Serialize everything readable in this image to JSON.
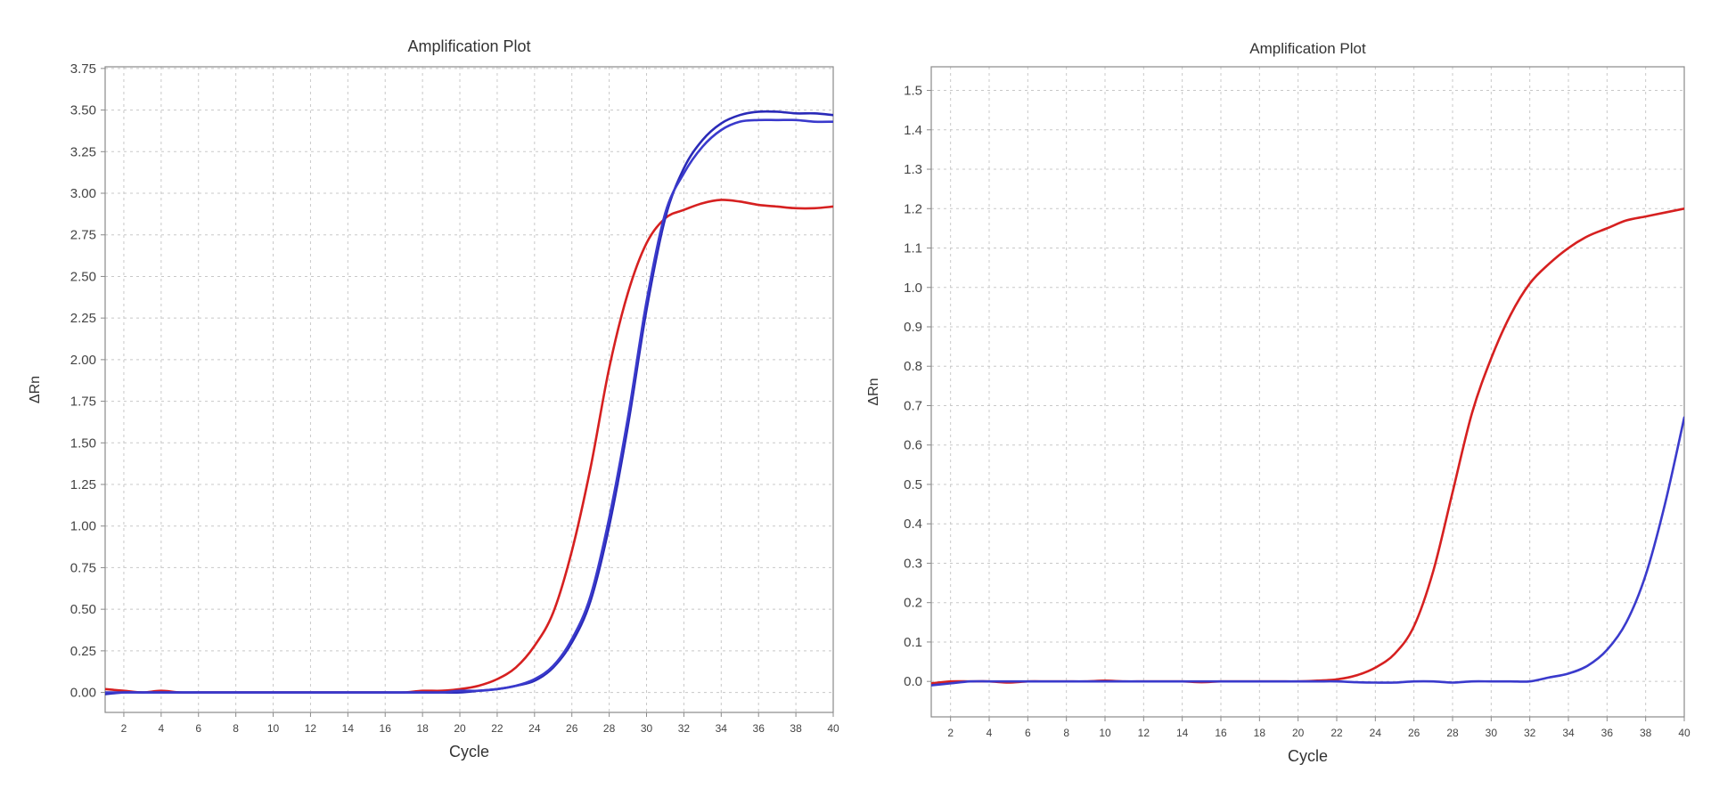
{
  "chart_data": [
    {
      "type": "line",
      "title": "Amplification Plot",
      "xlabel": "Cycle",
      "ylabel": "ΔRn",
      "xlim": [
        1,
        40
      ],
      "ylim": [
        -0.12,
        3.76
      ],
      "xticks": [
        2,
        4,
        6,
        8,
        10,
        12,
        14,
        16,
        18,
        20,
        22,
        24,
        26,
        28,
        30,
        32,
        34,
        36,
        38,
        40
      ],
      "yticks": [
        0.0,
        0.25,
        0.5,
        0.75,
        1.0,
        1.25,
        1.5,
        1.75,
        2.0,
        2.25,
        2.5,
        2.75,
        3.0,
        3.25,
        3.5,
        3.75
      ],
      "ytick_labels": [
        "0.00",
        "0.25",
        "0.50",
        "0.75",
        "1.00",
        "1.25",
        "1.50",
        "1.75",
        "2.00",
        "2.25",
        "2.50",
        "2.75",
        "3.00",
        "3.25",
        "3.50",
        "3.75"
      ],
      "grid": true,
      "x": [
        1,
        2,
        3,
        4,
        5,
        6,
        7,
        8,
        9,
        10,
        11,
        12,
        13,
        14,
        15,
        16,
        17,
        18,
        19,
        20,
        21,
        22,
        23,
        24,
        25,
        26,
        27,
        28,
        29,
        30,
        31,
        32,
        33,
        34,
        35,
        36,
        37,
        38,
        39,
        40
      ],
      "series": [
        {
          "color": "#d62020",
          "values": [
            0.02,
            0.01,
            0.0,
            0.01,
            0.0,
            0.0,
            0.0,
            0.0,
            0.0,
            0.0,
            0.0,
            0.0,
            0.0,
            0.0,
            0.0,
            0.0,
            0.0,
            0.01,
            0.01,
            0.02,
            0.04,
            0.08,
            0.15,
            0.28,
            0.48,
            0.85,
            1.35,
            1.95,
            2.4,
            2.7,
            2.85,
            2.9,
            2.94,
            2.96,
            2.95,
            2.93,
            2.92,
            2.91,
            2.91,
            2.92
          ]
        },
        {
          "color": "#2a2ab8",
          "values": [
            -0.01,
            0.0,
            0.0,
            0.0,
            0.0,
            0.0,
            0.0,
            0.0,
            0.0,
            0.0,
            0.0,
            0.0,
            0.0,
            0.0,
            0.0,
            0.0,
            0.0,
            0.0,
            0.0,
            0.0,
            0.01,
            0.02,
            0.04,
            0.07,
            0.15,
            0.3,
            0.55,
            1.0,
            1.6,
            2.3,
            2.85,
            3.15,
            3.32,
            3.42,
            3.47,
            3.49,
            3.49,
            3.48,
            3.48,
            3.47
          ]
        },
        {
          "color": "#3a3acc",
          "values": [
            0.0,
            0.0,
            0.0,
            0.0,
            0.0,
            0.0,
            0.0,
            0.0,
            0.0,
            0.0,
            0.0,
            0.0,
            0.0,
            0.0,
            0.0,
            0.0,
            0.0,
            0.0,
            0.0,
            0.01,
            0.01,
            0.02,
            0.04,
            0.08,
            0.16,
            0.32,
            0.58,
            1.05,
            1.65,
            2.35,
            2.88,
            3.12,
            3.28,
            3.38,
            3.43,
            3.44,
            3.44,
            3.44,
            3.43,
            3.43
          ]
        }
      ]
    },
    {
      "type": "line",
      "title": "Amplification Plot",
      "xlabel": "Cycle",
      "ylabel": "ΔRn",
      "xlim": [
        1,
        40
      ],
      "ylim": [
        -0.09,
        1.56
      ],
      "xticks": [
        2,
        4,
        6,
        8,
        10,
        12,
        14,
        16,
        18,
        20,
        22,
        24,
        26,
        28,
        30,
        32,
        34,
        36,
        38,
        40
      ],
      "yticks": [
        0.0,
        0.1,
        0.2,
        0.3,
        0.4,
        0.5,
        0.6,
        0.7,
        0.8,
        0.9,
        1.0,
        1.1,
        1.2,
        1.3,
        1.4,
        1.5
      ],
      "ytick_labels": [
        "0.0",
        "0.1",
        "0.2",
        "0.3",
        "0.4",
        "0.5",
        "0.6",
        "0.7",
        "0.8",
        "0.9",
        "1.0",
        "1.1",
        "1.2",
        "1.3",
        "1.4",
        "1.5"
      ],
      "grid": true,
      "x": [
        1,
        2,
        3,
        4,
        5,
        6,
        7,
        8,
        9,
        10,
        11,
        12,
        13,
        14,
        15,
        16,
        17,
        18,
        19,
        20,
        21,
        22,
        23,
        24,
        25,
        26,
        27,
        28,
        29,
        30,
        31,
        32,
        33,
        34,
        35,
        36,
        37,
        38,
        39,
        40
      ],
      "series": [
        {
          "color": "#d62020",
          "values": [
            -0.005,
            0.0,
            0.0,
            0.0,
            -0.003,
            0.0,
            0.0,
            0.0,
            0.0,
            0.002,
            0.0,
            0.0,
            0.0,
            0.0,
            -0.002,
            0.0,
            0.0,
            0.0,
            0.0,
            0.0,
            0.002,
            0.005,
            0.015,
            0.035,
            0.07,
            0.14,
            0.28,
            0.48,
            0.68,
            0.82,
            0.93,
            1.01,
            1.06,
            1.1,
            1.13,
            1.15,
            1.17,
            1.18,
            1.19,
            1.2
          ]
        },
        {
          "color": "#3a3acc",
          "values": [
            -0.01,
            -0.005,
            0.0,
            0.0,
            0.0,
            0.0,
            0.0,
            0.0,
            0.0,
            0.0,
            0.0,
            0.0,
            0.0,
            0.0,
            0.0,
            0.0,
            0.0,
            0.0,
            0.0,
            0.0,
            0.0,
            0.0,
            -0.002,
            -0.003,
            -0.003,
            0.0,
            0.0,
            -0.003,
            0.0,
            0.0,
            0.0,
            0.0,
            0.01,
            0.02,
            0.04,
            0.08,
            0.15,
            0.27,
            0.45,
            0.67
          ]
        }
      ]
    }
  ]
}
